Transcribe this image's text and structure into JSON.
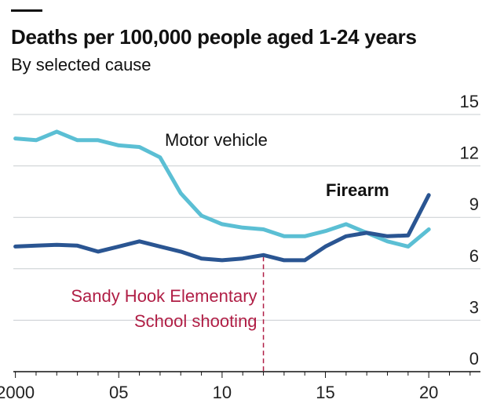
{
  "header": {
    "title": "Deaths per 100,000 people aged 1-24 years",
    "subtitle": "By selected cause"
  },
  "chart_data": {
    "type": "line",
    "title": "Deaths per 100,000 people aged 1-24 years",
    "subtitle": "By selected cause",
    "xlabel": "",
    "ylabel": "",
    "xlim": [
      1999.9,
      2022.5
    ],
    "ylim": [
      0,
      15
    ],
    "yticks": [
      0,
      3,
      6,
      9,
      12,
      15
    ],
    "xticks": [
      {
        "value": 2000,
        "label": "2000"
      },
      {
        "value": 2005,
        "label": "05"
      },
      {
        "value": 2010,
        "label": "10"
      },
      {
        "value": 2015,
        "label": "15"
      },
      {
        "value": 2020,
        "label": "20"
      }
    ],
    "grid": "horizontal",
    "x": [
      2000,
      2001,
      2002,
      2003,
      2004,
      2005,
      2006,
      2007,
      2008,
      2009,
      2010,
      2011,
      2012,
      2013,
      2014,
      2015,
      2016,
      2017,
      2018,
      2019,
      2020
    ],
    "series": [
      {
        "name": "Motor vehicle",
        "color": "#5bbfd4",
        "values": [
          13.6,
          13.5,
          14.0,
          13.5,
          13.5,
          13.2,
          13.1,
          12.5,
          10.4,
          9.1,
          8.6,
          8.4,
          8.3,
          7.9,
          7.9,
          8.2,
          8.6,
          8.1,
          7.6,
          7.3,
          8.3
        ]
      },
      {
        "name": "Firearm",
        "color": "#2a5592",
        "values": [
          7.3,
          7.35,
          7.4,
          7.35,
          7.0,
          7.3,
          7.6,
          7.3,
          7.0,
          6.6,
          6.5,
          6.6,
          6.8,
          6.5,
          6.5,
          7.3,
          7.9,
          8.1,
          7.9,
          7.95,
          10.3
        ]
      }
    ],
    "annotations": [
      {
        "text_lines": [
          "Sandy Hook Elementary",
          "School shooting"
        ],
        "x": 2012,
        "color": "#b01e45"
      }
    ]
  }
}
